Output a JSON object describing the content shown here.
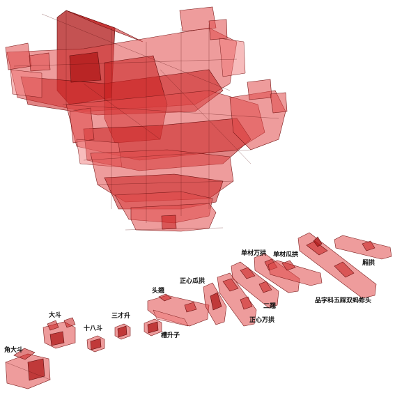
{
  "labels": {
    "jiao_da_dou": "角大斗",
    "da_dou": "大斗",
    "shiba_dou": "十八斗",
    "sancai_sheng": "三才升",
    "cao_sheng_zi": "槽升子",
    "tou_qiao": "头翘",
    "zhengxin_guagong": "正心瓜拱",
    "zhengxin_wangong": "正心万拱",
    "er_qiao": "二翘",
    "dancai_wangong": "单材万拱",
    "dancai_guagong": "单材瓜拱",
    "xiang_gong": "厢拱",
    "pinzike": "品字科五踩双蚂蚱头"
  },
  "colors": {
    "fill": "#e04a4a",
    "fill_dark": "#b01818",
    "stroke": "#7a1a1a",
    "label": "#111111"
  }
}
